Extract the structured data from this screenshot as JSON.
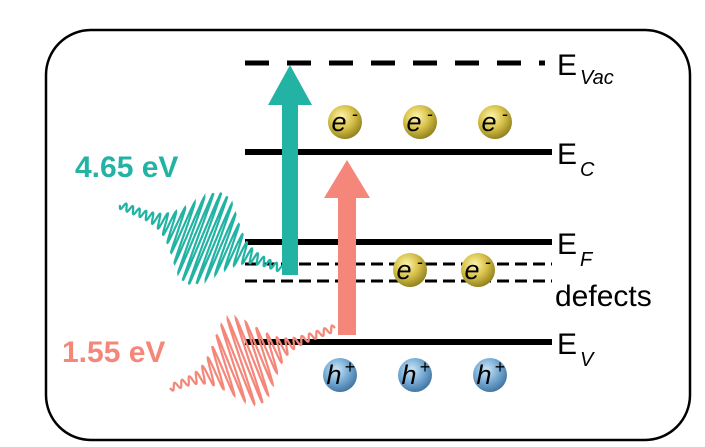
{
  "photons": [
    {
      "label": "4.65 eV"
    },
    {
      "label": "1.55 eV"
    }
  ],
  "levels": [
    {
      "symbol": "E",
      "subscript": "Vac"
    },
    {
      "symbol": "E",
      "subscript": "C"
    },
    {
      "symbol": "E",
      "subscript": "F"
    },
    {
      "symbol": "E",
      "subscript": "V"
    }
  ],
  "defects_label": "defects",
  "electron": {
    "symbol": "e",
    "charge": "-"
  },
  "hole": {
    "symbol": "h",
    "charge": "+"
  }
}
